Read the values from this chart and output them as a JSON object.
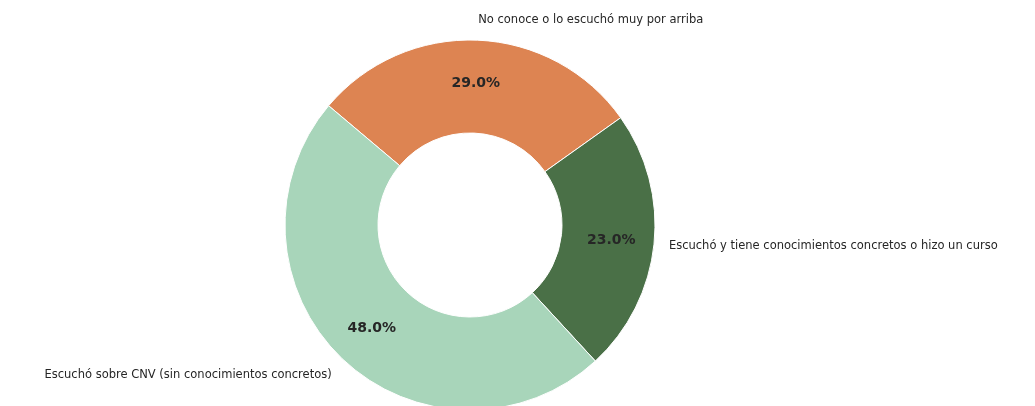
{
  "chart_data": {
    "type": "donut",
    "categories": [
      "No conoce o lo escuchó muy por arriba",
      "Escuchó y tiene conocimientos concretos o hizo un curso",
      "Escuchó sobre CNV (sin conocimientos concretos)"
    ],
    "values": [
      29,
      23,
      48
    ],
    "colors": [
      "#dd8452",
      "#4a7047",
      "#a8d5ba"
    ],
    "value_labels": [
      "29.0%",
      "23.0%",
      "48.0%"
    ]
  }
}
